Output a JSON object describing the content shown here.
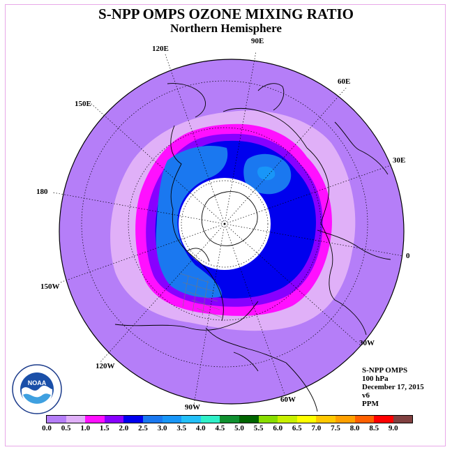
{
  "title": "S-NPP OMPS OZONE MIXING RATIO",
  "subtitle": "Northern Hemisphere",
  "map_labels": {
    "lon_90e": "90E",
    "lon_60e": "60E",
    "lon_30e": "30E",
    "lon_0": "0",
    "lon_30w": "30W",
    "lon_60w": "60W",
    "lon_90w": "90W",
    "lon_120w": "120W",
    "lon_150w": "150W",
    "lon_180": "180",
    "lon_150e": "150E",
    "lon_120e": "120E"
  },
  "info": {
    "instrument": "S-NPP OMPS",
    "level": "100 hPa",
    "date": "December 17, 2015",
    "version": "v6",
    "units": "PPM"
  },
  "logo": {
    "name": "noaa-logo",
    "text": "NOAA"
  },
  "colorbar": {
    "colors": [
      "#b57ef8",
      "#e0b0f8",
      "#ff10ff",
      "#8800ff",
      "#0000ee",
      "#1a78f0",
      "#1896f8",
      "#24c0f8",
      "#30f0c8",
      "#109030",
      "#006400",
      "#88dd00",
      "#c8f000",
      "#ffff00",
      "#ffc800",
      "#ffa000",
      "#ff6000",
      "#ff0000",
      "#804040"
    ],
    "ticks": [
      "0.0",
      "0.5",
      "1.0",
      "1.5",
      "2.0",
      "2.5",
      "3.0",
      "3.5",
      "4.0",
      "4.5",
      "5.0",
      "5.5",
      "6.0",
      "6.5",
      "7.0",
      "7.5",
      "8.0",
      "8.5",
      "9.0"
    ]
  }
}
